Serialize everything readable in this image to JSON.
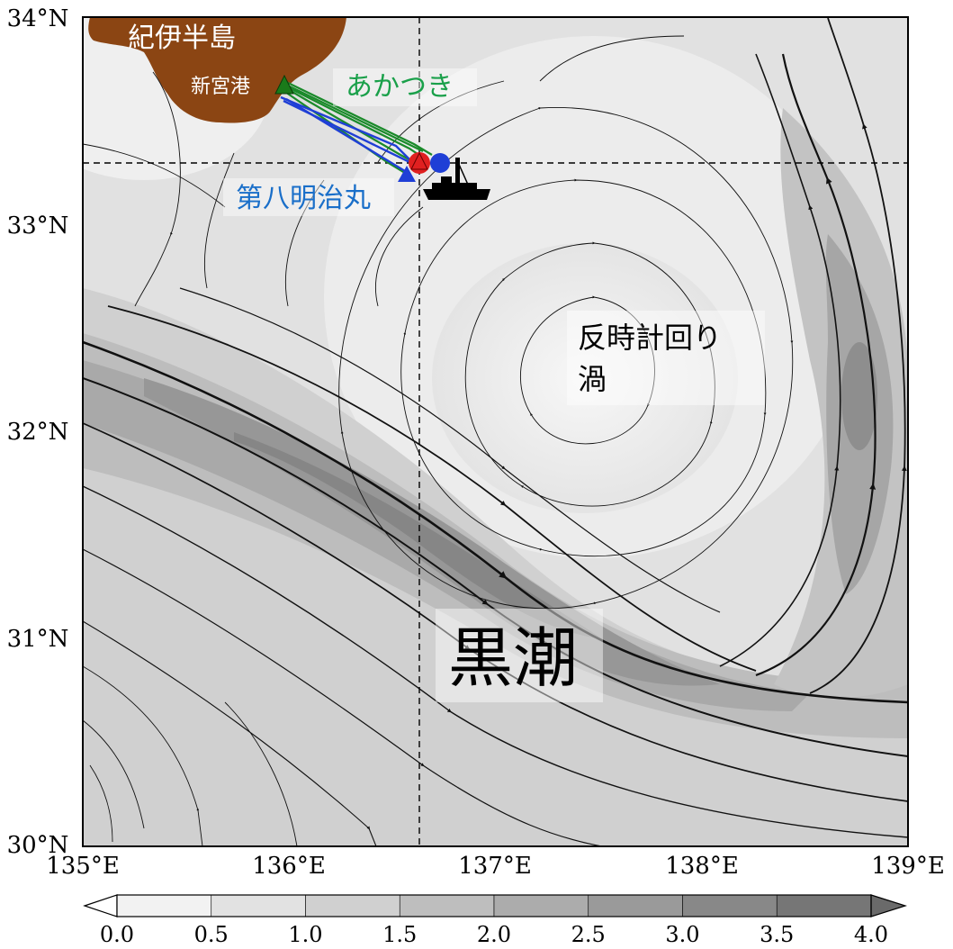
{
  "map": {
    "lon_labels": [
      "135°E",
      "136°E",
      "137°E",
      "138°E",
      "139°E"
    ],
    "lat_labels": [
      "30°N",
      "31°N",
      "32°N",
      "33°N",
      "34°N"
    ],
    "lon_range": [
      135,
      139
    ],
    "lat_range": [
      30,
      34
    ],
    "reference_lines": {
      "lon": 136.63,
      "lat": 33.3
    }
  },
  "labels": {
    "peninsula": "紀伊半島",
    "port": "新宮港",
    "akatsuki": "あかつき",
    "daihachi": "第八明治丸",
    "eddy_line1": "反時計回り",
    "eddy_line2": "渦",
    "kuroshio": "黒潮"
  },
  "colorbar": {
    "ticks": [
      "0.0",
      "0.5",
      "1.0",
      "1.5",
      "2.0",
      "2.5",
      "3.0",
      "3.5",
      "4.0"
    ],
    "colors": [
      "#f2f2f2",
      "#e2e2e2",
      "#d0d0d0",
      "#bebebe",
      "#acacac",
      "#9a9a9a",
      "#888888",
      "#767676"
    ]
  },
  "colors": {
    "land": "#8b4513",
    "akatsuki_track": "#1a8a2a",
    "daihachi_track": "#1f3fd6",
    "marker_red": "#e02020",
    "marker_blue": "#1f3fd6",
    "marker_green": "#1a7a1a",
    "label_green": "#1aa04a",
    "label_blue": "#1a6fc9"
  },
  "chart_data": {
    "type": "map",
    "annotations": [
      "紀伊半島",
      "新宮港",
      "あかつき",
      "第八明治丸",
      "反時計回り 渦",
      "黒潮"
    ],
    "colorbar_range": [
      0.0,
      4.0
    ]
  }
}
